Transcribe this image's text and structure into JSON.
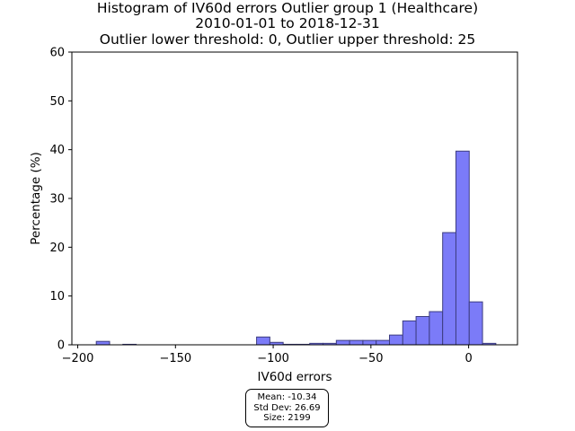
{
  "chart_data": {
    "type": "bar",
    "title": [
      "Histogram of IV60d errors Outlier group 1 (Healthcare)",
      "2010-01-01 to 2018-12-31",
      "Outlier lower threshold: 0, Outlier upper threshold: 25"
    ],
    "xlabel": "IV60d errors",
    "ylabel": "Percentage (%)",
    "xlim": [
      -203,
      25
    ],
    "ylim": [
      0,
      60
    ],
    "xticks": [
      -200,
      -150,
      -100,
      -50,
      0
    ],
    "xtick_labels": [
      "−200",
      "−150",
      "−100",
      "−50",
      "0"
    ],
    "yticks": [
      0,
      10,
      20,
      30,
      40,
      50,
      60
    ],
    "ytick_labels": [
      "0",
      "10",
      "20",
      "30",
      "40",
      "50",
      "60"
    ],
    "bin_width": 6.8,
    "bins": [
      {
        "x0": -190.5,
        "x1": -183.7,
        "value": 0.7
      },
      {
        "x0": -176.9,
        "x1": -170.1,
        "value": 0.1
      },
      {
        "x0": -108.5,
        "x1": -101.7,
        "value": 1.6
      },
      {
        "x0": -101.7,
        "x1": -94.9,
        "value": 0.5
      },
      {
        "x0": -94.9,
        "x1": -88.1,
        "value": 0.1
      },
      {
        "x0": -88.1,
        "x1": -81.3,
        "value": 0.1
      },
      {
        "x0": -81.3,
        "x1": -74.5,
        "value": 0.3
      },
      {
        "x0": -74.5,
        "x1": -67.7,
        "value": 0.3
      },
      {
        "x0": -67.7,
        "x1": -60.9,
        "value": 0.9
      },
      {
        "x0": -60.9,
        "x1": -54.1,
        "value": 0.9
      },
      {
        "x0": -54.1,
        "x1": -47.3,
        "value": 0.9
      },
      {
        "x0": -47.3,
        "x1": -40.5,
        "value": 0.9
      },
      {
        "x0": -40.5,
        "x1": -33.7,
        "value": 2.0
      },
      {
        "x0": -33.7,
        "x1": -26.9,
        "value": 4.9
      },
      {
        "x0": -26.9,
        "x1": -20.1,
        "value": 5.8
      },
      {
        "x0": -20.1,
        "x1": -13.3,
        "value": 6.8
      },
      {
        "x0": -13.3,
        "x1": -6.5,
        "value": 23.0
      },
      {
        "x0": -6.5,
        "x1": 0.3,
        "value": 39.7
      },
      {
        "x0": 0.3,
        "x1": 7.1,
        "value": 8.8
      },
      {
        "x0": 7.1,
        "x1": 13.9,
        "value": 0.3
      }
    ],
    "bar_color": "#7b7bf8",
    "bar_edge_color": "#3d3d80",
    "grid": false,
    "annotation": [
      "Mean: -10.34",
      "Std Dev: 26.69",
      "Size: 2199"
    ]
  }
}
